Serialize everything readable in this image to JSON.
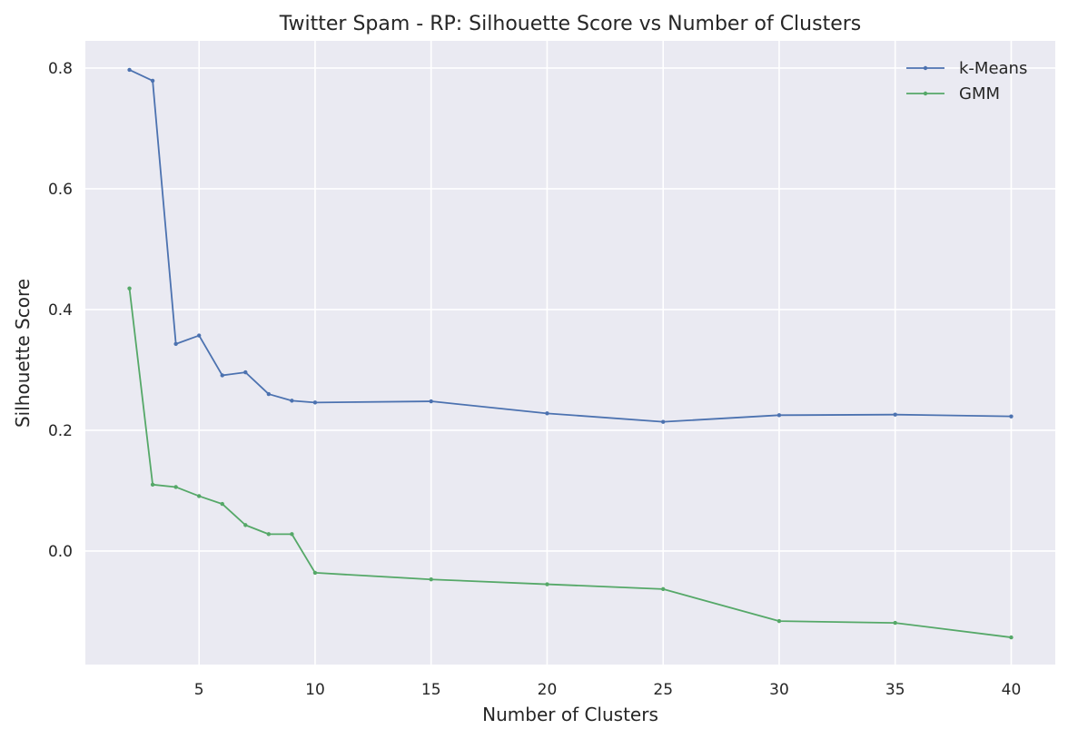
{
  "chart_data": {
    "type": "line",
    "title": "Twitter Spam - RP: Silhouette Score vs Number of Clusters",
    "xlabel": "Number of Clusters",
    "ylabel": "Silhouette Score",
    "xlim": [
      0.1,
      41.9
    ],
    "ylim": [
      -0.188,
      0.845
    ],
    "xticks": [
      5,
      10,
      15,
      20,
      25,
      30,
      35,
      40
    ],
    "yticks": [
      0.0,
      0.2,
      0.4,
      0.6,
      0.8
    ],
    "ytick_labels": [
      "0.0",
      "0.2",
      "0.4",
      "0.6",
      "0.8"
    ],
    "grid": true,
    "legend_position": "top-right",
    "background": "#eaeaf2",
    "x": [
      2,
      3,
      4,
      5,
      6,
      7,
      8,
      9,
      10,
      15,
      20,
      25,
      30,
      35,
      40
    ],
    "series": [
      {
        "name": "k-Means",
        "color": "#4c72b0",
        "values": [
          0.797,
          0.779,
          0.343,
          0.357,
          0.291,
          0.296,
          0.26,
          0.249,
          0.246,
          0.248,
          0.228,
          0.214,
          0.225,
          0.226,
          0.223
        ]
      },
      {
        "name": "GMM",
        "color": "#55a868",
        "values": [
          0.435,
          0.11,
          0.106,
          0.091,
          0.078,
          0.043,
          0.028,
          0.028,
          -0.036,
          -0.047,
          -0.055,
          -0.063,
          -0.116,
          -0.119,
          -0.143
        ]
      }
    ]
  }
}
